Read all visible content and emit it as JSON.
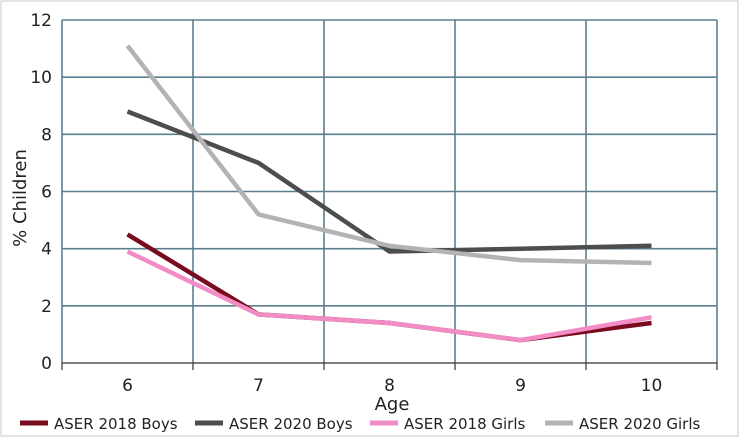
{
  "chart_data": {
    "type": "line",
    "xlabel": "Age",
    "ylabel": "% Children",
    "categories": [
      "6",
      "7",
      "8",
      "9",
      "10"
    ],
    "ylim": [
      0,
      12
    ],
    "yticks": [
      0,
      2,
      4,
      6,
      8,
      10,
      12
    ],
    "grid": true,
    "legend_position": "bottom",
    "series": [
      {
        "name": "ASER 2018 Boys",
        "color": "#7a0a1e",
        "values": [
          4.5,
          1.7,
          1.4,
          0.8,
          1.4
        ]
      },
      {
        "name": "ASER 2020 Boys",
        "color": "#4d4d4d",
        "values": [
          8.8,
          7.0,
          3.9,
          4.0,
          4.1
        ]
      },
      {
        "name": "ASER 2018 Girls",
        "color": "#f28cc4",
        "values": [
          3.9,
          1.7,
          1.4,
          0.8,
          1.6
        ]
      },
      {
        "name": "ASER 2020 Girls",
        "color": "#b3b3b3",
        "values": [
          11.1,
          5.2,
          4.1,
          3.6,
          3.5
        ]
      }
    ]
  }
}
